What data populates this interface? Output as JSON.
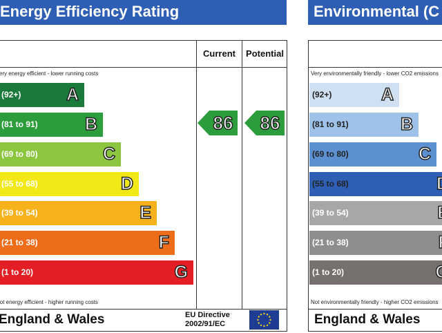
{
  "energy": {
    "title": "Energy Efficiency Rating",
    "col_current": "Current",
    "col_potential": "Potential",
    "top_caption": "Very energy efficient - lower running costs",
    "bottom_caption": "Not energy efficient - higher running costs",
    "bands": [
      {
        "range": "(92+)",
        "letter": "A",
        "color": "#1a7a3c"
      },
      {
        "range": "(81 to 91)",
        "letter": "B",
        "color": "#2d9c3c"
      },
      {
        "range": "(69 to 80)",
        "letter": "C",
        "color": "#8cc63f"
      },
      {
        "range": "(55 to 68)",
        "letter": "D",
        "color": "#f1e816"
      },
      {
        "range": "(39 to 54)",
        "letter": "E",
        "color": "#f6b21a"
      },
      {
        "range": "(21 to 38)",
        "letter": "F",
        "color": "#ee6d1b"
      },
      {
        "range": "(1 to 20)",
        "letter": "G",
        "color": "#e41e25"
      }
    ],
    "current_value": "86",
    "potential_value": "86",
    "rating_color": "#2d9c3c",
    "footer_region": "England & Wales",
    "directive_line1": "EU Directive",
    "directive_line2": "2002/91/EC"
  },
  "environmental": {
    "title": "Environmental (C",
    "top_caption": "Very environmentally friendly - lower CO2 emissions",
    "bottom_caption": "Not environmentally friendly - higher CO2 emissions",
    "bands": [
      {
        "range": "(92+)",
        "letter": "A",
        "color": "#cfe0f3"
      },
      {
        "range": "(81 to 91)",
        "letter": "B",
        "color": "#9ec2e8"
      },
      {
        "range": "(69 to 80)",
        "letter": "C",
        "color": "#5d90d0"
      },
      {
        "range": "(55 to 68)",
        "letter": "D",
        "color": "#2e5fb4"
      },
      {
        "range": "(39 to 54)",
        "letter": "E",
        "color": "#a7a7a7"
      },
      {
        "range": "(21 to 38)",
        "letter": "F",
        "color": "#8f8d8d"
      },
      {
        "range": "(1 to 20)",
        "letter": "G",
        "color": "#76706f"
      }
    ],
    "footer_region": "England & Wales"
  }
}
